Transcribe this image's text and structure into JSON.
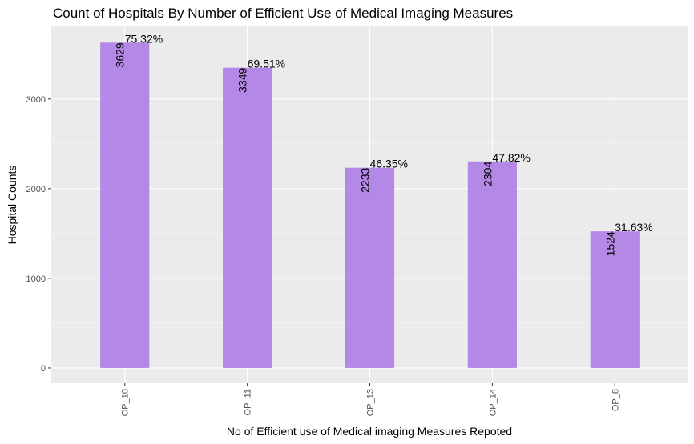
{
  "chart_data": {
    "type": "bar",
    "title": "Count of Hospitals By Number of Efficient Use of Medical Imaging Measures",
    "xlabel": "No of Efficient use of Medical imaging Measures Repoted",
    "ylabel": "Hospital Counts",
    "categories": [
      "OP_10",
      "OP_11",
      "OP_13",
      "OP_14",
      "OP_8"
    ],
    "values": [
      3629,
      3349,
      2233,
      2304,
      1524
    ],
    "percent_labels": [
      "75.32%",
      "69.51%",
      "46.35%",
      "47.82%",
      "31.63%"
    ],
    "count_labels": [
      "3629",
      "3349",
      "2233",
      "2304",
      "1524"
    ],
    "yticks": [
      0,
      1000,
      2000,
      3000
    ],
    "ytick_labels": [
      "0",
      "1000",
      "2000",
      "3000"
    ],
    "ylim": [
      -170,
      3810
    ],
    "bar_color": "#b388e6",
    "panel_background": "#ebebeb",
    "grid": true,
    "legend": "none"
  }
}
